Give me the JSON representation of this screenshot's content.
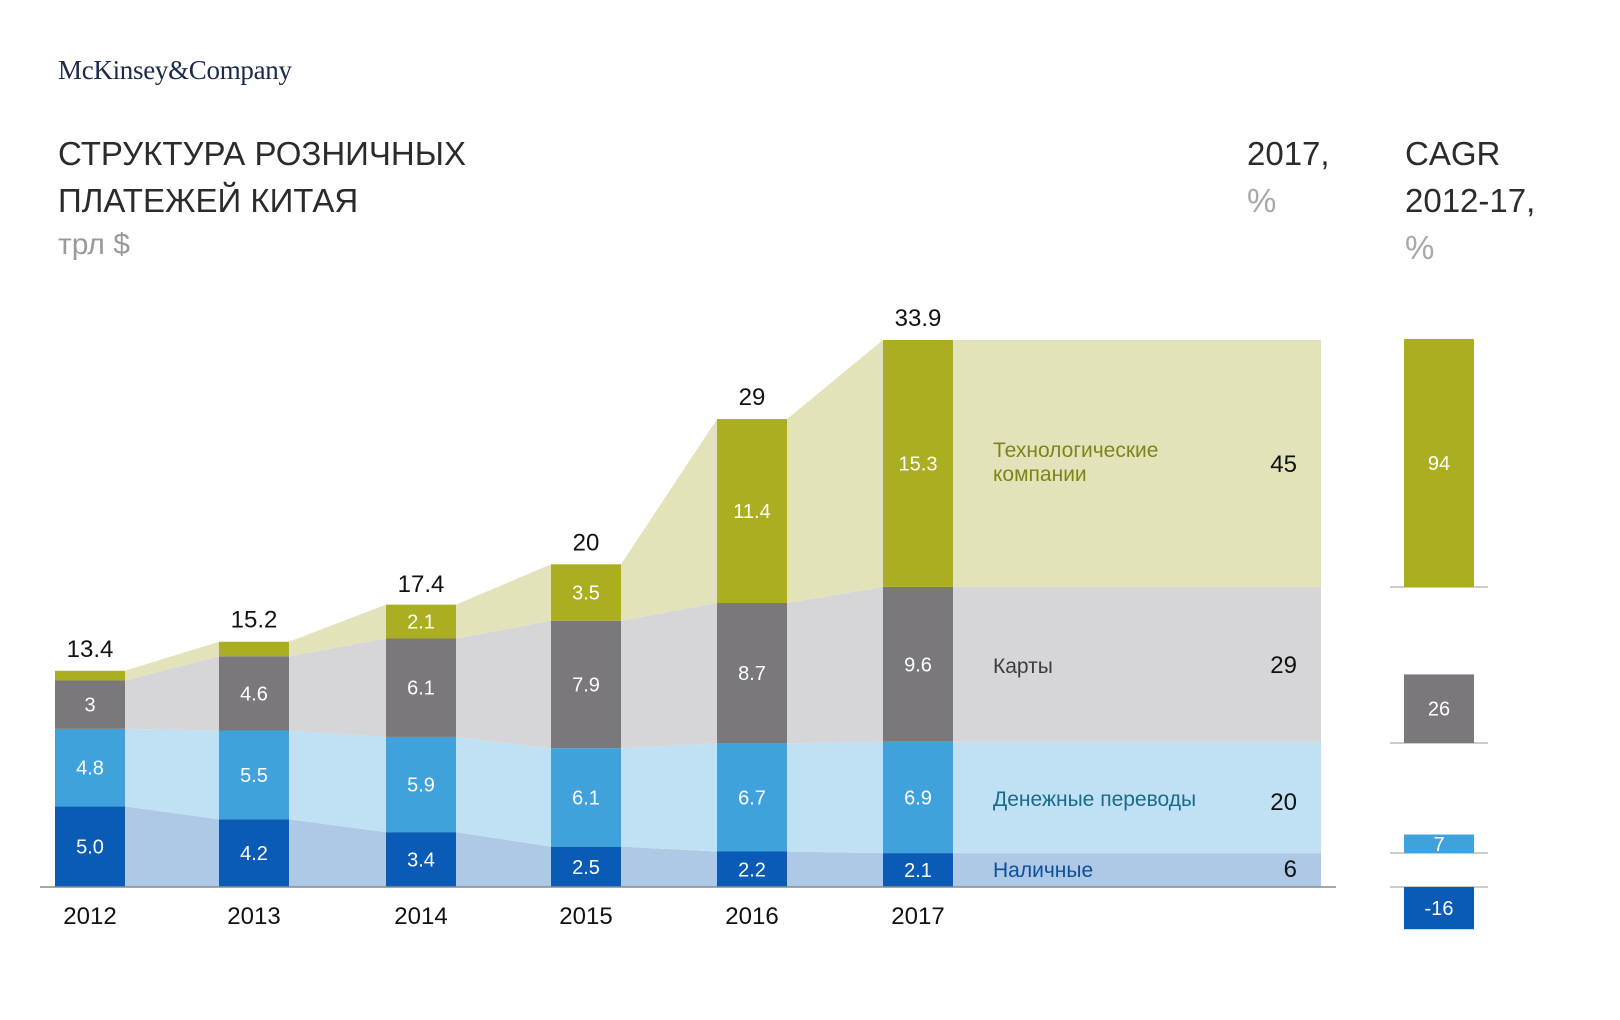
{
  "brand": "McKinsey&Company",
  "title_lines": [
    "СТРУКТУРА РОЗНИЧНЫХ",
    "ПЛАТЕЖЕЙ КИТАЯ"
  ],
  "unit": "трл $",
  "share_header": {
    "line1": "2017,",
    "pct": "%"
  },
  "cagr_header": {
    "line1": "CAGR",
    "line2": "2012-17,",
    "pct": "%"
  },
  "chart_data": {
    "type": "bar",
    "stacked": true,
    "title": "СТРУКТУРА РОЗНИЧНЫХ ПЛАТЕЖЕЙ КИТАЯ",
    "ylabel": "трл $",
    "xlabel": "",
    "categories": [
      "2012",
      "2013",
      "2014",
      "2015",
      "2016",
      "2017"
    ],
    "totals": [
      "13.4",
      "15.2",
      "17.4",
      "20",
      "29",
      "33.9"
    ],
    "total_values": [
      13.4,
      15.2,
      17.4,
      20,
      29,
      33.9
    ],
    "ylim": [
      0,
      33.9
    ],
    "grid": false,
    "series": [
      {
        "key": "cash",
        "name": "Наличные",
        "values": [
          5.0,
          4.2,
          3.4,
          2.5,
          2.2,
          2.1
        ],
        "labels": [
          "5.0",
          "4.2",
          "3.4",
          "2.5",
          "2.2",
          "2.1"
        ],
        "share_2017": "6",
        "cagr_2012_17": "-16",
        "cagr_value": -16,
        "color": "#0a5bb5",
        "band_color": "#aec9e6",
        "text_color": "#0d4f9e"
      },
      {
        "key": "transfers",
        "name": "Денежные переводы",
        "values": [
          4.8,
          5.5,
          5.9,
          6.1,
          6.7,
          6.9
        ],
        "labels": [
          "4.8",
          "5.5",
          "5.9",
          "6.1",
          "6.7",
          "6.9"
        ],
        "share_2017": "20",
        "cagr_2012_17": "7",
        "cagr_value": 7,
        "color": "#3fa2dc",
        "band_color": "#c0e1f3",
        "text_color": "#1a6a8c"
      },
      {
        "key": "cards",
        "name": "Карты",
        "values": [
          3,
          4.6,
          6.1,
          7.9,
          8.7,
          9.6
        ],
        "labels": [
          "3",
          "4.6",
          "6.1",
          "7.9",
          "8.7",
          "9.6"
        ],
        "share_2017": "29",
        "cagr_2012_17": "26",
        "cagr_value": 26,
        "color": "#7a787b",
        "band_color": "#d6d5d8",
        "text_color": "#3d3d3d"
      },
      {
        "key": "tech",
        "name": "Технологические компании",
        "name_lines": [
          "Технологические",
          "компании"
        ],
        "values": [
          0.6,
          0.9,
          2.1,
          3.5,
          11.4,
          15.3
        ],
        "labels": [
          "",
          "",
          "2.1",
          "3.5",
          "11.4",
          "15.3"
        ],
        "share_2017": "45",
        "cagr_2012_17": "94",
        "cagr_value": 94,
        "color": "#abae20",
        "band_color": "#e2e3bb",
        "text_color": "#7f8416"
      }
    ],
    "legend": "right"
  }
}
